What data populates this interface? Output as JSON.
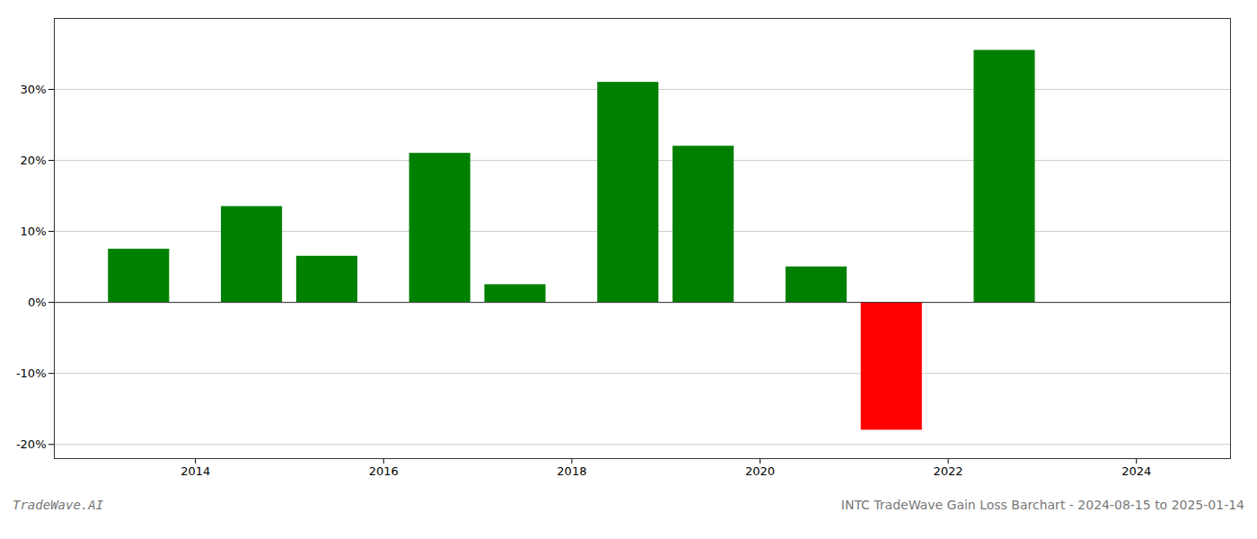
{
  "chart_data": {
    "type": "bar",
    "title": "INTC TradeWave Gain Loss Barchart - 2024-08-15 to 2025-01-14",
    "annotations": [
      "TradeWave.AI"
    ],
    "x": [
      2013.4,
      2014.6,
      2015.4,
      2016.6,
      2017.4,
      2018.6,
      2019.4,
      2020.6,
      2021.4,
      2022.6
    ],
    "values": [
      7.5,
      13.5,
      6.5,
      21.0,
      2.5,
      31.0,
      22.0,
      5.0,
      -18.0,
      35.5
    ],
    "colors": [
      "#008000",
      "#008000",
      "#008000",
      "#008000",
      "#008000",
      "#008000",
      "#008000",
      "#008000",
      "#ff0000",
      "#008000"
    ],
    "xlim": [
      2012.5,
      2025.0
    ],
    "xticks": [
      2014,
      2016,
      2018,
      2020,
      2022,
      2024
    ],
    "ylim": [
      -22,
      40
    ],
    "yticks": [
      {
        "value": -20,
        "label": "-20%"
      },
      {
        "value": -10,
        "label": "-10%"
      },
      {
        "value": 0,
        "label": "0%"
      },
      {
        "value": 10,
        "label": "10%"
      },
      {
        "value": 20,
        "label": "20%"
      },
      {
        "value": 30,
        "label": "30%"
      }
    ],
    "grid": true
  }
}
